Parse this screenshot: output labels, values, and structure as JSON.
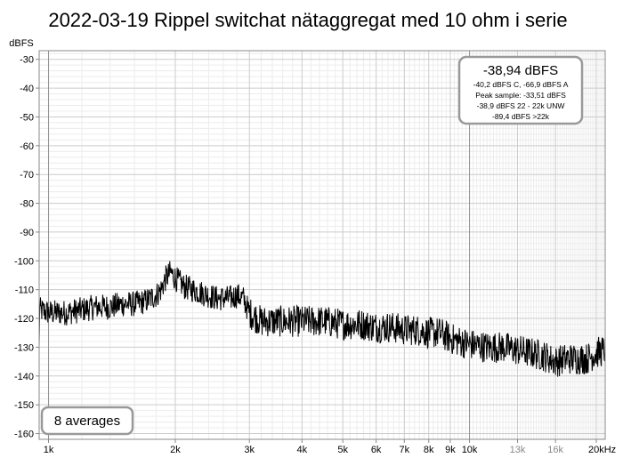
{
  "chart_data": {
    "type": "line",
    "title": "2022-03-19 Rippel switchat nätaggregat med 10 ohm i serie",
    "ylabel": "dBFS",
    "xlabel": "",
    "x_scale": "log",
    "xlim": [
      950,
      21000
    ],
    "ylim": [
      -162,
      -27
    ],
    "y_ticks": [
      -30,
      -40,
      -50,
      -60,
      -70,
      -80,
      -90,
      -100,
      -110,
      -120,
      -130,
      -140,
      -150,
      -160
    ],
    "y_tick_labels": [
      "-30",
      "-40",
      "-50",
      "-60",
      "-70",
      "-80",
      "-90",
      "-100",
      "-110",
      "-120",
      "-130",
      "-140",
      "-150",
      "-160"
    ],
    "x_ticks": [
      {
        "value": 1000,
        "label": "1k",
        "major": true
      },
      {
        "value": 2000,
        "label": "2k",
        "major": true
      },
      {
        "value": 3000,
        "label": "3k",
        "major": true
      },
      {
        "value": 4000,
        "label": "4k",
        "major": true
      },
      {
        "value": 5000,
        "label": "5k",
        "major": true
      },
      {
        "value": 6000,
        "label": "6k",
        "major": true
      },
      {
        "value": 7000,
        "label": "7k",
        "major": true
      },
      {
        "value": 8000,
        "label": "8k",
        "major": true
      },
      {
        "value": 9000,
        "label": "9k",
        "major": true
      },
      {
        "value": 10000,
        "label": "10k",
        "major": true
      },
      {
        "value": 13000,
        "label": "13k",
        "major": false
      },
      {
        "value": 16000,
        "label": "16k",
        "major": false
      },
      {
        "value": 20000,
        "label": "20kHz",
        "major": true
      }
    ],
    "grid": true,
    "series": [
      {
        "color": "#000000",
        "x": [
          950,
          1000,
          1100,
          1200,
          1300,
          1400,
          1500,
          1600,
          1700,
          1800,
          1850,
          1900,
          1950,
          2000,
          2100,
          2200,
          2300,
          2400,
          2500,
          2600,
          2700,
          2800,
          2900,
          3000,
          3200,
          3400,
          3600,
          3800,
          4000,
          4500,
          5000,
          5500,
          6000,
          6500,
          7000,
          7500,
          8000,
          8500,
          9000,
          9500,
          10000,
          11000,
          12000,
          13000,
          14000,
          15000,
          16000,
          17000,
          18000,
          19000,
          20000,
          21000
        ],
        "y": [
          -117,
          -118,
          -118,
          -117,
          -116,
          -116,
          -115,
          -115,
          -114,
          -112,
          -110,
          -106,
          -104,
          -106,
          -109,
          -110,
          -111,
          -112,
          -113,
          -113,
          -113,
          -112,
          -113,
          -118,
          -121,
          -121,
          -121,
          -121,
          -121,
          -121,
          -122,
          -122,
          -123,
          -123,
          -124,
          -124,
          -125,
          -125,
          -127,
          -128,
          -129,
          -130,
          -130,
          -131,
          -132,
          -133,
          -135,
          -134,
          -134,
          -134,
          -132,
          -131
        ]
      }
    ],
    "readout": {
      "main": "-38,94 dBFS",
      "lines": [
        "-40,2 dBFS C, -66,9 dBFS A",
        "Peak sample: -33,51 dBFS",
        "-38,9 dBFS 22 - 22k UNW",
        "-89,4 dBFS >22k"
      ]
    },
    "averages_label": "8 averages"
  }
}
